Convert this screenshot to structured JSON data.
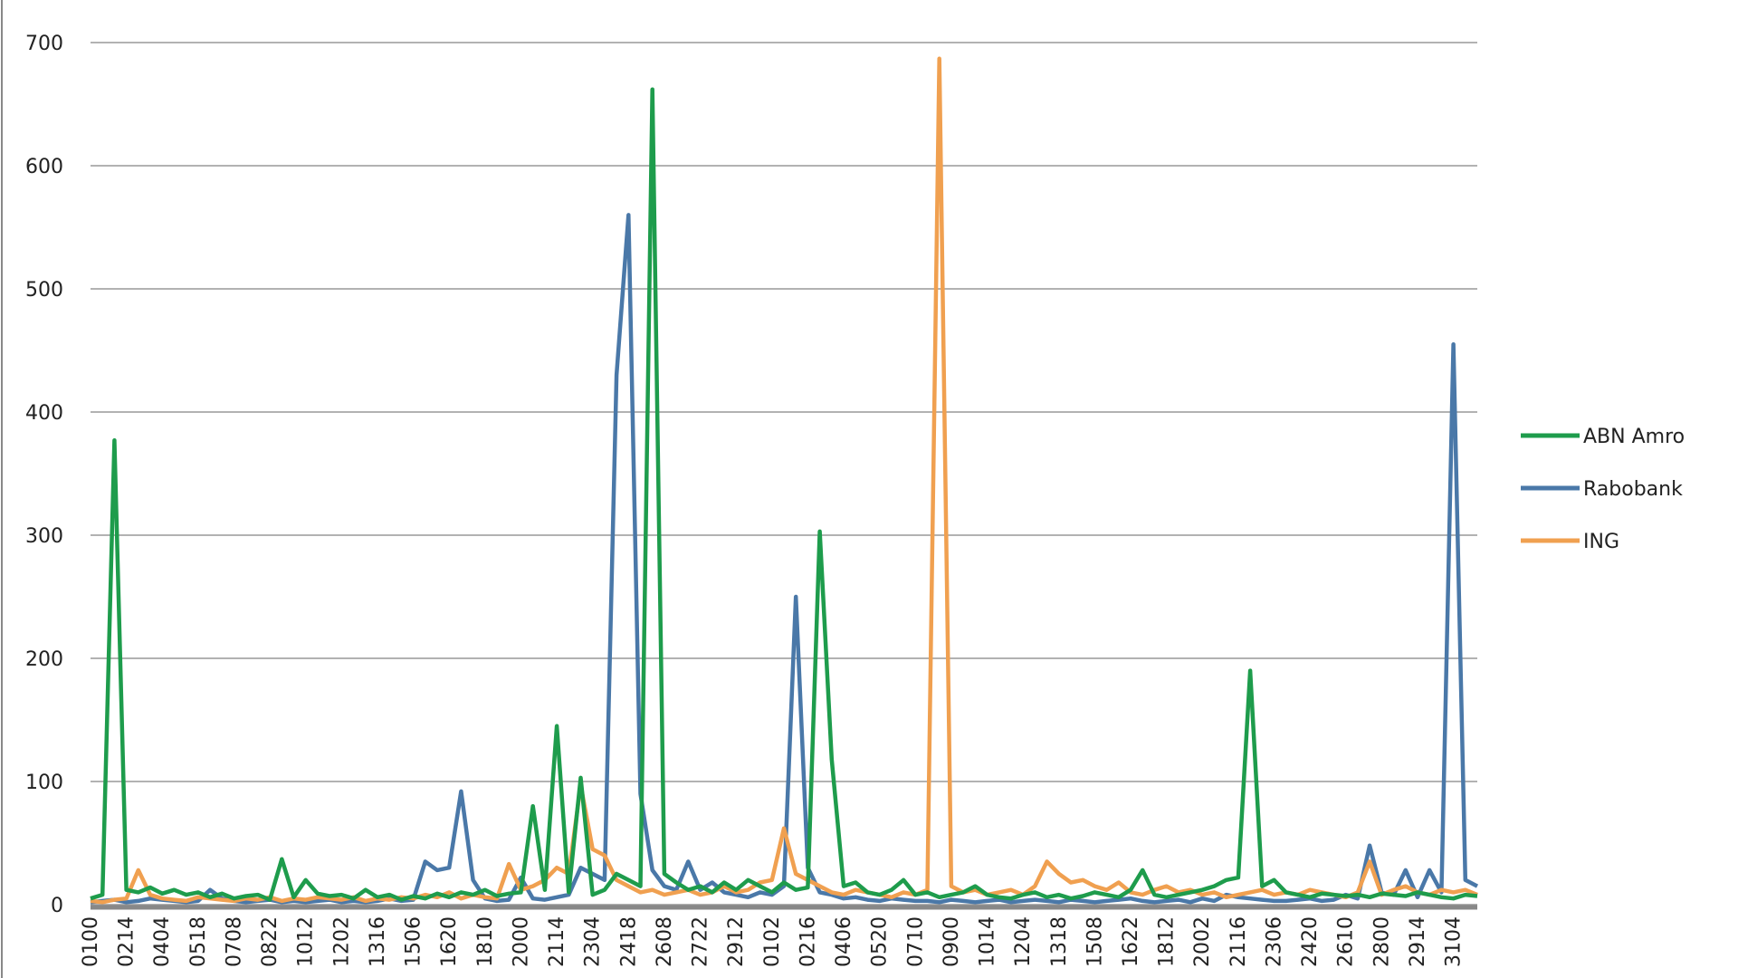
{
  "chart_data": {
    "type": "line",
    "categories": [
      "0100",
      null,
      null,
      "0214",
      null,
      null,
      "0404",
      null,
      null,
      "0518",
      null,
      null,
      "0708",
      null,
      null,
      "0822",
      null,
      null,
      "1012",
      null,
      null,
      "1202",
      null,
      null,
      "1316",
      null,
      null,
      "1506",
      null,
      null,
      "1620",
      null,
      null,
      "1810",
      null,
      null,
      "2000",
      null,
      null,
      "2114",
      null,
      null,
      "2304",
      null,
      null,
      "2418",
      null,
      null,
      "2608",
      null,
      null,
      "2722",
      null,
      null,
      "2912",
      null,
      null,
      "0102",
      null,
      null,
      "0216",
      null,
      null,
      "0406",
      null,
      null,
      "0520",
      null,
      null,
      "0710",
      null,
      null,
      "0900",
      null,
      null,
      "1014",
      null,
      null,
      "1204",
      null,
      null,
      "1318",
      null,
      null,
      "1508",
      null,
      null,
      "1622",
      null,
      null,
      "1812",
      null,
      null,
      "2002",
      null,
      null,
      "2116",
      null,
      null,
      "2306",
      null,
      null,
      "2420",
      null,
      null,
      "2610",
      null,
      null,
      "2800",
      null,
      null,
      "2914",
      null,
      null,
      "3104",
      null,
      null
    ],
    "series": [
      {
        "name": "ABN Amro",
        "color": "#1e9c4c",
        "values": [
          5,
          8,
          377,
          12,
          10,
          14,
          9,
          12,
          8,
          10,
          6,
          9,
          5,
          7,
          8,
          4,
          37,
          6,
          20,
          9,
          7,
          8,
          5,
          12,
          6,
          8,
          4,
          7,
          5,
          9,
          6,
          10,
          8,
          12,
          7,
          9,
          10,
          80,
          12,
          145,
          10,
          103,
          8,
          12,
          25,
          20,
          15,
          662,
          25,
          18,
          12,
          15,
          10,
          18,
          12,
          20,
          15,
          10,
          18,
          12,
          14,
          303,
          118,
          15,
          18,
          10,
          8,
          12,
          20,
          8,
          10,
          6,
          8,
          10,
          15,
          8,
          6,
          5,
          8,
          10,
          6,
          8,
          5,
          7,
          10,
          8,
          6,
          12,
          28,
          8,
          6,
          8,
          10,
          12,
          15,
          20,
          22,
          190,
          15,
          20,
          10,
          8,
          6,
          9,
          8,
          7,
          8,
          6,
          9,
          8,
          7,
          10,
          8,
          6,
          5,
          8,
          7
        ]
      },
      {
        "name": "Rabobank",
        "color": "#4a78a8",
        "values": [
          2,
          3,
          4,
          2,
          3,
          5,
          4,
          3,
          2,
          3,
          12,
          5,
          3,
          2,
          3,
          4,
          2,
          3,
          2,
          3,
          4,
          2,
          3,
          2,
          3,
          5,
          3,
          4,
          35,
          28,
          30,
          92,
          20,
          5,
          3,
          4,
          22,
          5,
          4,
          6,
          8,
          30,
          25,
          20,
          430,
          560,
          90,
          28,
          15,
          12,
          35,
          12,
          18,
          10,
          8,
          6,
          10,
          8,
          15,
          250,
          30,
          10,
          8,
          5,
          6,
          4,
          3,
          5,
          4,
          3,
          3,
          2,
          4,
          3,
          2,
          3,
          4,
          2,
          3,
          4,
          3,
          2,
          4,
          3,
          2,
          3,
          4,
          5,
          3,
          2,
          3,
          4,
          2,
          5,
          3,
          8,
          6,
          5,
          4,
          3,
          3,
          4,
          5,
          3,
          4,
          8,
          5,
          48,
          10,
          8,
          28,
          6,
          28,
          10,
          455,
          20,
          15
        ]
      },
      {
        "name": "ING",
        "color": "#f0a050",
        "values": [
          3,
          2,
          4,
          5,
          28,
          8,
          5,
          4,
          3,
          6,
          5,
          4,
          3,
          5,
          4,
          6,
          3,
          5,
          4,
          6,
          5,
          4,
          6,
          3,
          5,
          4,
          6,
          5,
          8,
          6,
          10,
          5,
          8,
          6,
          5,
          33,
          12,
          15,
          20,
          30,
          25,
          97,
          45,
          40,
          20,
          15,
          10,
          12,
          8,
          10,
          12,
          8,
          10,
          15,
          10,
          12,
          18,
          20,
          62,
          25,
          20,
          15,
          10,
          8,
          12,
          10,
          8,
          6,
          10,
          8,
          12,
          687,
          15,
          10,
          12,
          8,
          10,
          12,
          8,
          15,
          35,
          25,
          18,
          20,
          15,
          12,
          18,
          10,
          8,
          12,
          15,
          10,
          12,
          8,
          10,
          6,
          8,
          10,
          12,
          8,
          10,
          8,
          12,
          10,
          8,
          6,
          10,
          35,
          8,
          12,
          15,
          10,
          8,
          12,
          10,
          12,
          8
        ]
      }
    ],
    "ylim": [
      0,
      700
    ],
    "yticks": [
      0,
      100,
      200,
      300,
      400,
      500,
      600,
      700
    ],
    "grid": true,
    "legend": "right"
  }
}
